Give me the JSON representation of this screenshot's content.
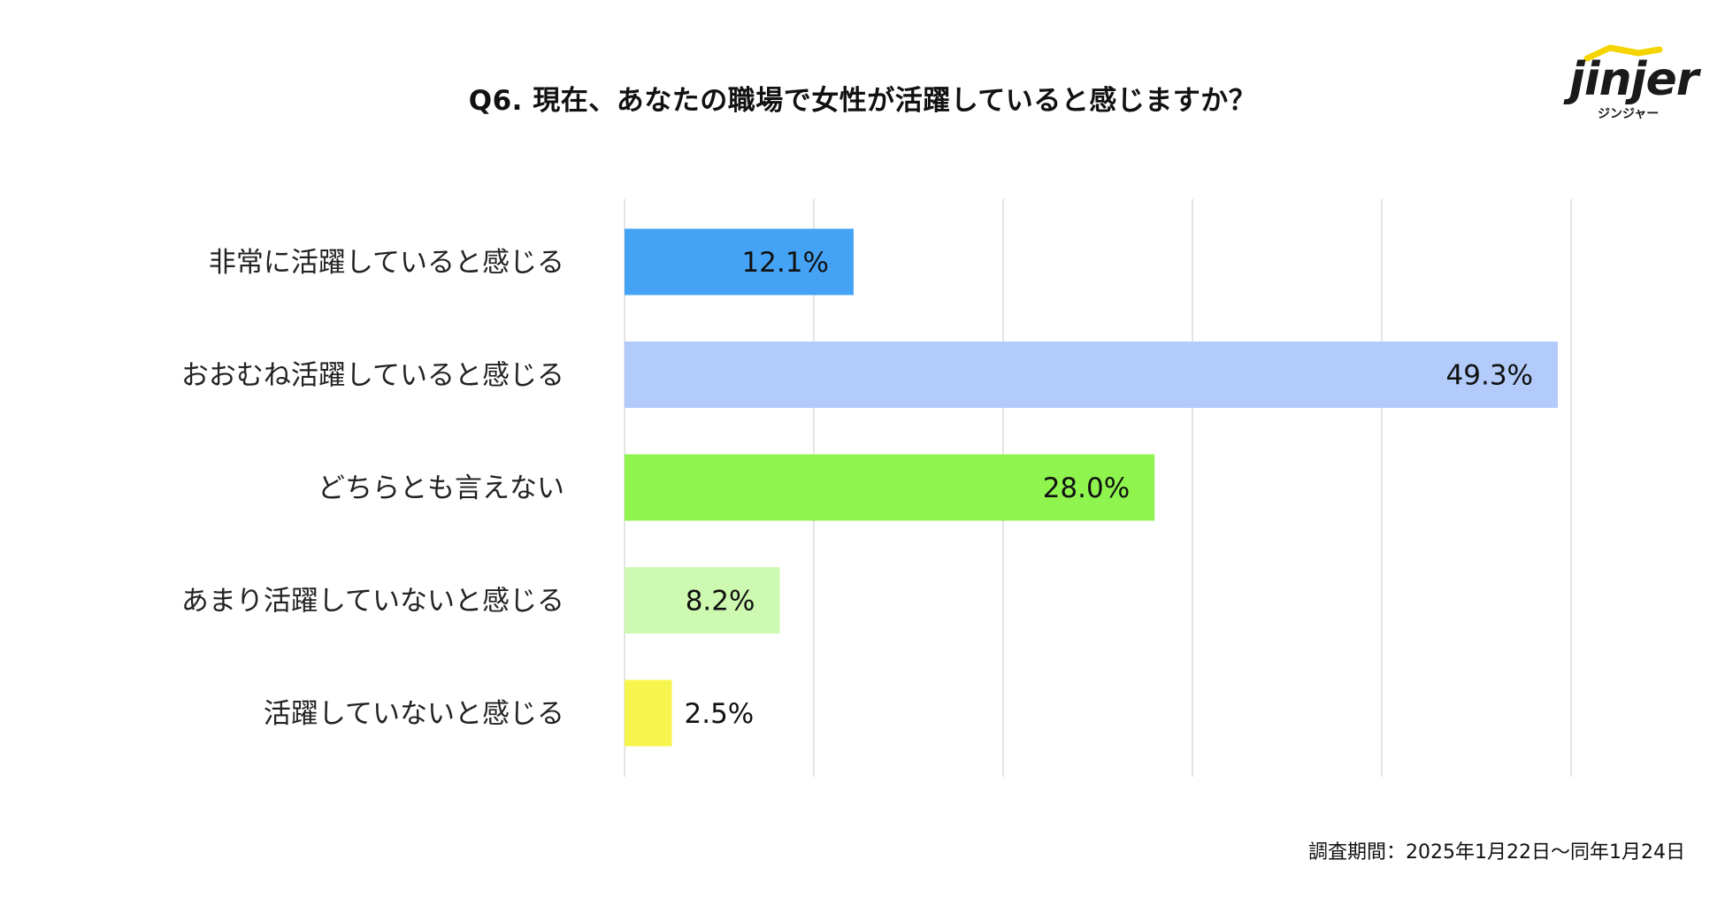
{
  "title": "Q6. 現在、あなたの職場で女性が活躍していると感じますか？",
  "logo": {
    "wordmark": "jinjer",
    "subtitle": "ジンジャー",
    "accent_color": "#f5d400"
  },
  "footnote": "調査期間：2025年1月22日〜同年1月24日",
  "chart_data": {
    "type": "bar",
    "orientation": "horizontal",
    "categories": [
      "非常に活躍していると感じる",
      "おおむね活躍していると感じる",
      "どちらとも言えない",
      "あまり活躍していないと感じる",
      "活躍していないと感じる"
    ],
    "values": [
      12.1,
      49.3,
      28.0,
      8.2,
      2.5
    ],
    "value_labels": [
      "12.1%",
      "49.3%",
      "28.0%",
      "8.2%",
      "2.5%"
    ],
    "colors": [
      "#45a3f5",
      "#b2cbfb",
      "#8ff44e",
      "#cdf9b0",
      "#f7f54d"
    ],
    "xlim": [
      0,
      50
    ],
    "grid": true,
    "legend": "none"
  }
}
